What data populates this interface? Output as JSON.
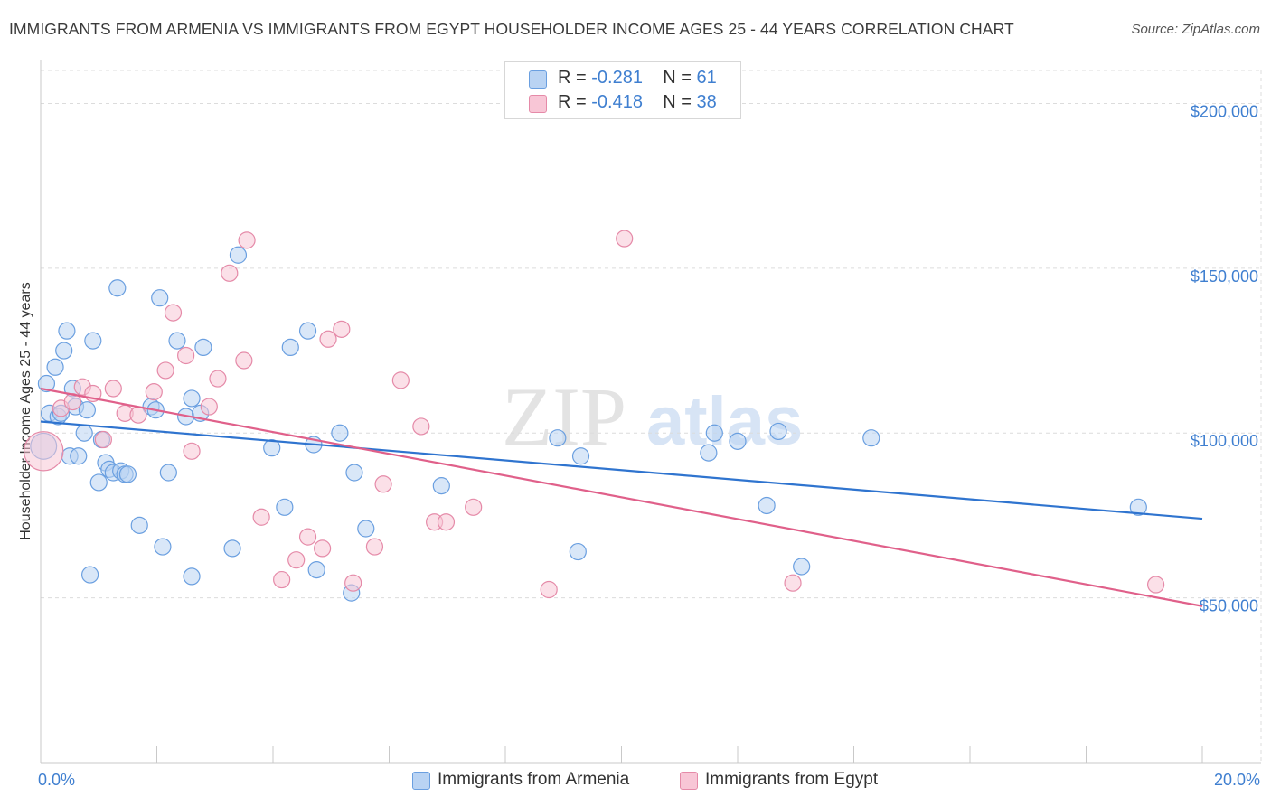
{
  "header": {
    "title": "IMMIGRANTS FROM ARMENIA VS IMMIGRANTS FROM EGYPT HOUSEHOLDER INCOME AGES 25 - 44 YEARS CORRELATION CHART",
    "source": "Source: ZipAtlas.com"
  },
  "watermark": {
    "zip": "ZIP",
    "atlas": "atlas"
  },
  "legend": {
    "armenia": {
      "r_label": "R =",
      "r_value": "-0.281",
      "n_label": "N =",
      "n_value": "61"
    },
    "egypt": {
      "r_label": "R =",
      "r_value": "-0.418",
      "n_label": "N =",
      "n_value": "38"
    }
  },
  "colors": {
    "armenia_fill": "#b9d3f3",
    "armenia_stroke": "#6a9fe0",
    "armenia_line": "#2f74cf",
    "egypt_fill": "#f8c6d6",
    "egypt_stroke": "#e58aa8",
    "egypt_line": "#e0608a",
    "tick": "#3f7fd0",
    "grid": "#dcdcdc"
  },
  "chart_data": {
    "type": "scatter",
    "title": "IMMIGRANTS FROM ARMENIA VS IMMIGRANTS FROM EGYPT HOUSEHOLDER INCOME AGES 25 - 44 YEARS CORRELATION CHART",
    "xlabel": "",
    "ylabel": "Householder Income Ages 25 - 44 years",
    "xlim": [
      0,
      20
    ],
    "ylim": [
      0,
      210000
    ],
    "x_ticks": [
      {
        "value": 0,
        "label": "0.0%"
      },
      {
        "value": 20,
        "label": "20.0%"
      }
    ],
    "y_ticks": [
      {
        "value": 50000,
        "label": "$50,000"
      },
      {
        "value": 100000,
        "label": "$100,000"
      },
      {
        "value": 150000,
        "label": "$150,000"
      },
      {
        "value": 200000,
        "label": "$200,000"
      }
    ],
    "grid": true,
    "legend_position": "top-center",
    "series": [
      {
        "name": "Immigrants from Armenia",
        "trend": {
          "x": [
            0,
            20
          ],
          "y": [
            103500,
            74000
          ]
        },
        "points": [
          [
            0.05,
            96000,
            1.6
          ],
          [
            0.1,
            115000,
            1
          ],
          [
            0.15,
            106000,
            1
          ],
          [
            0.25,
            120000,
            1
          ],
          [
            0.3,
            105000,
            1
          ],
          [
            0.35,
            106000,
            1
          ],
          [
            0.4,
            125000,
            1
          ],
          [
            0.45,
            131000,
            1
          ],
          [
            0.5,
            93000,
            1
          ],
          [
            0.55,
            113500,
            1
          ],
          [
            0.6,
            108000,
            1
          ],
          [
            0.65,
            93000,
            1
          ],
          [
            0.75,
            100000,
            1
          ],
          [
            0.8,
            107000,
            1
          ],
          [
            0.85,
            57000,
            1
          ],
          [
            0.9,
            128000,
            1
          ],
          [
            1.0,
            85000,
            1
          ],
          [
            1.05,
            98000,
            1
          ],
          [
            1.12,
            91000,
            1
          ],
          [
            1.18,
            89000,
            1
          ],
          [
            1.25,
            88000,
            1
          ],
          [
            1.32,
            144000,
            1
          ],
          [
            1.38,
            88500,
            1
          ],
          [
            1.45,
            87500,
            1
          ],
          [
            1.5,
            87500,
            1
          ],
          [
            1.7,
            72000,
            1
          ],
          [
            1.9,
            108000,
            1
          ],
          [
            1.98,
            107000,
            1
          ],
          [
            2.05,
            141000,
            1
          ],
          [
            2.1,
            65500,
            1
          ],
          [
            2.2,
            88000,
            1
          ],
          [
            2.35,
            128000,
            1
          ],
          [
            2.5,
            105000,
            1
          ],
          [
            2.6,
            110500,
            1
          ],
          [
            2.6,
            56500,
            1
          ],
          [
            2.75,
            106000,
            1
          ],
          [
            2.8,
            126000,
            1
          ],
          [
            3.3,
            65000,
            1
          ],
          [
            3.4,
            154000,
            1
          ],
          [
            3.98,
            95500,
            1
          ],
          [
            4.2,
            77500,
            1
          ],
          [
            4.3,
            126000,
            1
          ],
          [
            4.6,
            131000,
            1
          ],
          [
            4.7,
            96500,
            1
          ],
          [
            4.75,
            58500,
            1
          ],
          [
            5.15,
            100000,
            1
          ],
          [
            5.35,
            51500,
            1
          ],
          [
            5.4,
            88000,
            1
          ],
          [
            5.6,
            71000,
            1
          ],
          [
            6.9,
            84000,
            1
          ],
          [
            8.9,
            98500,
            1
          ],
          [
            9.25,
            64000,
            1
          ],
          [
            9.3,
            93000,
            1
          ],
          [
            11.5,
            94000,
            1
          ],
          [
            11.6,
            100000,
            1
          ],
          [
            12.0,
            97500,
            1
          ],
          [
            12.5,
            78000,
            1
          ],
          [
            12.7,
            100500,
            1
          ],
          [
            13.1,
            59500,
            1
          ],
          [
            14.3,
            98500,
            1
          ],
          [
            18.9,
            77500,
            1
          ]
        ]
      },
      {
        "name": "Immigrants from Egypt",
        "trend": {
          "x": [
            0,
            20
          ],
          "y": [
            113500,
            47500
          ]
        },
        "points": [
          [
            0.05,
            94500,
            2.4
          ],
          [
            0.35,
            107500,
            1
          ],
          [
            0.55,
            109500,
            1
          ],
          [
            0.72,
            114000,
            1
          ],
          [
            0.9,
            112000,
            1
          ],
          [
            1.08,
            98000,
            1
          ],
          [
            1.25,
            113500,
            1
          ],
          [
            1.45,
            106000,
            1
          ],
          [
            1.68,
            105500,
            1
          ],
          [
            1.95,
            112500,
            1
          ],
          [
            2.15,
            119000,
            1
          ],
          [
            2.28,
            136500,
            1
          ],
          [
            2.5,
            123500,
            1
          ],
          [
            2.6,
            94500,
            1
          ],
          [
            2.9,
            108000,
            1
          ],
          [
            3.05,
            116500,
            1
          ],
          [
            3.25,
            148500,
            1
          ],
          [
            3.5,
            122000,
            1
          ],
          [
            3.55,
            158500,
            1
          ],
          [
            3.8,
            74500,
            1
          ],
          [
            4.15,
            55500,
            1
          ],
          [
            4.4,
            61500,
            1
          ],
          [
            4.6,
            68500,
            1
          ],
          [
            4.85,
            65000,
            1
          ],
          [
            4.95,
            128500,
            1
          ],
          [
            5.18,
            131500,
            1
          ],
          [
            5.38,
            54500,
            1
          ],
          [
            5.75,
            65500,
            1
          ],
          [
            5.9,
            84500,
            1
          ],
          [
            6.2,
            116000,
            1
          ],
          [
            6.55,
            102000,
            1
          ],
          [
            6.78,
            73000,
            1
          ],
          [
            6.98,
            73000,
            1
          ],
          [
            7.45,
            77500,
            1
          ],
          [
            8.75,
            52500,
            1
          ],
          [
            10.05,
            159000,
            1
          ],
          [
            12.95,
            54500,
            1
          ],
          [
            19.2,
            54000,
            1
          ]
        ]
      }
    ]
  },
  "bottom_legend": {
    "armenia": "Immigrants from Armenia",
    "egypt": "Immigrants from Egypt"
  }
}
